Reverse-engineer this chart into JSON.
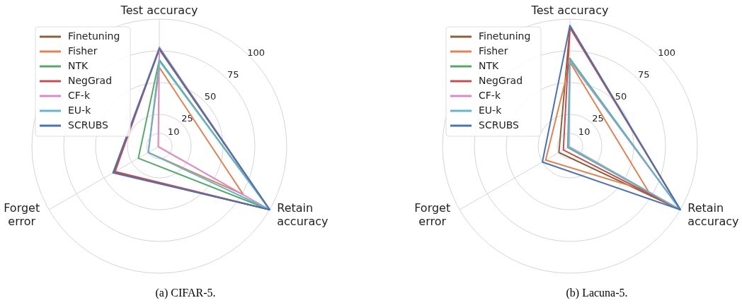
{
  "chart_data": [
    {
      "type": "radar",
      "categories": [
        "Test accuracy",
        "Retain\naccuracy",
        "Forget\nerror"
      ],
      "ylim": [
        0,
        100
      ],
      "yticks": [
        10,
        25,
        50,
        75,
        100
      ],
      "grid": true,
      "legend": "top left",
      "annotations": [
        "(a) CIFAR-5."
      ],
      "series": [
        {
          "name": "Finetuning",
          "color": "#8c613c",
          "values": [
            76,
            100,
            41
          ]
        },
        {
          "name": "Fisher",
          "color": "#dd8452",
          "values": [
            62,
            76,
            10
          ]
        },
        {
          "name": "NTK",
          "color": "#55a868",
          "values": [
            68,
            100,
            19
          ]
        },
        {
          "name": "NegGrad",
          "color": "#c44e52",
          "values": [
            77,
            100,
            40
          ]
        },
        {
          "name": "CF-k",
          "color": "#da8bc3",
          "values": [
            78,
            100,
            1
          ]
        },
        {
          "name": "EU-k",
          "color": "#64b5cd",
          "values": [
            67,
            100,
            10
          ]
        },
        {
          "name": "SCRUBS",
          "color": "#4c72b0",
          "values": [
            77,
            100,
            42
          ]
        }
      ]
    },
    {
      "type": "radar",
      "categories": [
        "Test accuracy",
        "Retain\naccuracy",
        "Forget\nerror"
      ],
      "ylim": [
        0,
        100
      ],
      "yticks": [
        10,
        25,
        50,
        75,
        100
      ],
      "grid": true,
      "legend": "top left",
      "annotations": [
        "(b) Lacuna-5."
      ],
      "series": [
        {
          "name": "Finetuning",
          "color": "#8c613c",
          "values": [
            94,
            100,
            10
          ]
        },
        {
          "name": "Fisher",
          "color": "#dd8452",
          "values": [
            66,
            71,
            22
          ]
        },
        {
          "name": "NTK",
          "color": "#55a868",
          "values": [
            69,
            100,
            2
          ]
        },
        {
          "name": "NegGrad",
          "color": "#c44e52",
          "values": [
            93,
            100,
            6
          ]
        },
        {
          "name": "CF-k",
          "color": "#da8bc3",
          "values": [
            67,
            100,
            1
          ]
        },
        {
          "name": "EU-k",
          "color": "#64b5cd",
          "values": [
            68,
            100,
            1.5
          ]
        },
        {
          "name": "SCRUBS",
          "color": "#4c72b0",
          "values": [
            95,
            100,
            25
          ]
        }
      ]
    }
  ]
}
